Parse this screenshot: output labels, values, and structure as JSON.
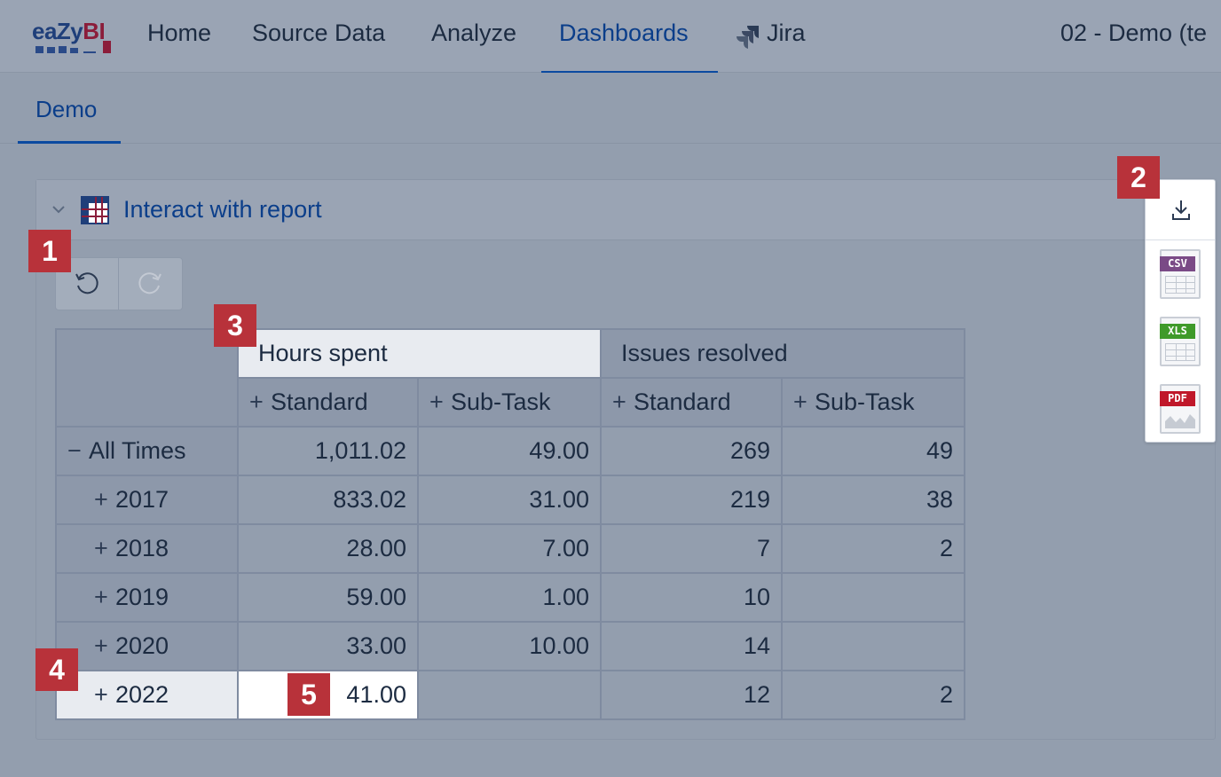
{
  "topnav": {
    "logo": {
      "text_main": "eaZy",
      "text_bi": "BI"
    },
    "items": [
      {
        "label": "Home"
      },
      {
        "label": "Source Data"
      },
      {
        "label": "Analyze"
      },
      {
        "label": "Dashboards"
      },
      {
        "label": "Jira"
      }
    ],
    "active_item": "Dashboards",
    "right_title": "02 - Demo (te"
  },
  "subnav": {
    "tab_label": "Demo"
  },
  "panel": {
    "title": "Interact with report",
    "icon": "table-icon",
    "collapse_icon": "chevron-down-icon"
  },
  "toolbar": {
    "undo_icon": "undo-icon",
    "redo_icon": "redo-icon"
  },
  "export": {
    "download_icon": "download-icon",
    "formats": [
      {
        "label": "CSV",
        "color": "#7a4a86"
      },
      {
        "label": "XLS",
        "color": "#3f9a2a"
      },
      {
        "label": "PDF",
        "color": "#c0182a"
      }
    ]
  },
  "table": {
    "measure_headers": [
      "Hours spent",
      "Issues resolved"
    ],
    "sub_headers": [
      "Standard",
      "Sub-Task",
      "Standard",
      "Sub-Task"
    ],
    "rows": [
      {
        "label": "All Times",
        "expander": "−",
        "values": [
          "1,011.02",
          "49.00",
          "269",
          "49"
        ]
      },
      {
        "label": "2017",
        "expander": "+",
        "values": [
          "833.02",
          "31.00",
          "219",
          "38"
        ]
      },
      {
        "label": "2018",
        "expander": "+",
        "values": [
          "28.00",
          "7.00",
          "7",
          "2"
        ]
      },
      {
        "label": "2019",
        "expander": "+",
        "values": [
          "59.00",
          "1.00",
          "10",
          ""
        ]
      },
      {
        "label": "2020",
        "expander": "+",
        "values": [
          "33.00",
          "10.00",
          "14",
          ""
        ]
      },
      {
        "label": "2022",
        "expander": "+",
        "values": [
          "41.00",
          "",
          "12",
          "2"
        ]
      }
    ]
  },
  "callouts": [
    "1",
    "2",
    "3",
    "4",
    "5"
  ],
  "colors": {
    "accent": "#0b3e8a",
    "callout": "#b8323a"
  }
}
